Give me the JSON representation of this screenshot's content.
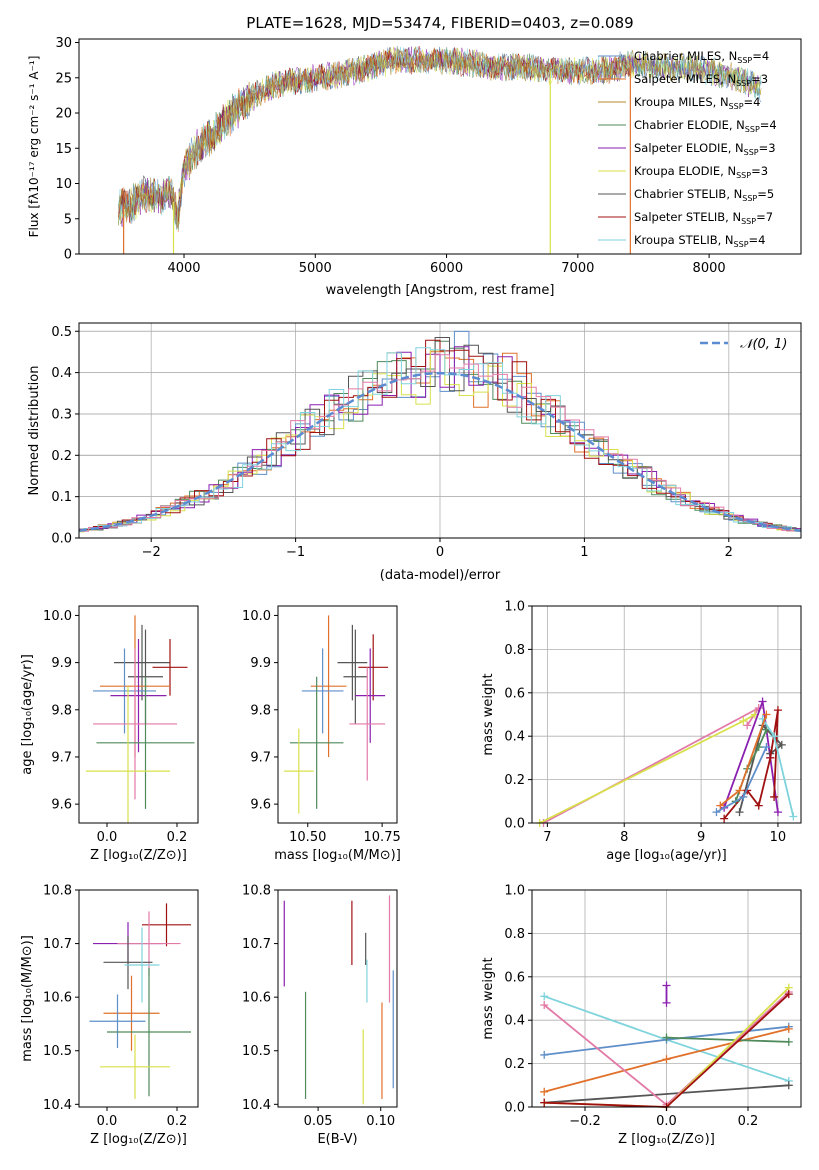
{
  "figure_title": "PLATE=1628, MJD=53474, FIBERID=0403, z=0.089",
  "colors": {
    "chabrier_miles": "#5f8fc9",
    "salpeter_miles": "#e0702a",
    "kroupa_miles": "#b58a2a",
    "chabrier_elodie": "#4f8a5b",
    "salpeter_elodie": "#8a1fb0",
    "kroupa_elodie": "#d8e04a",
    "chabrier_stelib": "#555555",
    "salpeter_stelib": "#a01010",
    "kroupa_stelib": "#7fd3dc",
    "pink": "#e27aa8",
    "red_extra": "#d04a4a",
    "gaussian": "#5b8bd0"
  },
  "chart_data": [
    {
      "id": "spectrum",
      "type": "line",
      "title": "PLATE=1628, MJD=53474, FIBERID=0403, z=0.089",
      "xlabel": "wavelength [Angstrom, rest frame]",
      "ylabel": "Flux [fλ10⁻¹⁷ erg cm⁻² s⁻¹ A⁻¹]",
      "xlim": [
        3200,
        8700
      ],
      "ylim": [
        0,
        30.5
      ],
      "xticks": [
        "4000",
        "5000",
        "6000",
        "7000",
        "8000"
      ],
      "yticks": [
        "0",
        "5",
        "10",
        "15",
        "20",
        "25",
        "30"
      ],
      "legend_position": "top-right",
      "series": [
        {
          "name": "Chabrier MILES, N_SSP=4",
          "label": "Chabrier MILES, N",
          "sub": "SSP",
          "tail": "=4",
          "color": "#5f8fc9"
        },
        {
          "name": "Salpeter MILES, N_SSP=3",
          "label": "Salpeter MILES, N",
          "sub": "SSP",
          "tail": "=3",
          "color": "#e0702a"
        },
        {
          "name": "Kroupa MILES, N_SSP=4",
          "label": "Kroupa MILES, N",
          "sub": "SSP",
          "tail": "=4",
          "color": "#b58a2a"
        },
        {
          "name": "Chabrier ELODIE, N_SSP=4",
          "label": "Chabrier ELODIE, N",
          "sub": "SSP",
          "tail": "=4",
          "color": "#4f8a5b"
        },
        {
          "name": "Salpeter ELODIE, N_SSP=3",
          "label": "Salpeter ELODIE, N",
          "sub": "SSP",
          "tail": "=3",
          "color": "#8a1fb0"
        },
        {
          "name": "Kroupa ELODIE, N_SSP=3",
          "label": "Kroupa ELODIE, N",
          "sub": "SSP",
          "tail": "=3",
          "color": "#d8e04a"
        },
        {
          "name": "Chabrier STELIB, N_SSP=5",
          "label": "Chabrier STELIB, N",
          "sub": "SSP",
          "tail": "=5",
          "color": "#555555"
        },
        {
          "name": "Salpeter STELIB, N_SSP=7",
          "label": "Salpeter STELIB, N",
          "sub": "SSP",
          "tail": "=7",
          "color": "#a01010"
        },
        {
          "name": "Kroupa STELIB, N_SSP=4",
          "label": "Kroupa STELIB, N",
          "sub": "SSP",
          "tail": "=4",
          "color": "#7fd3dc"
        }
      ],
      "envelope": {
        "x": [
          3500,
          3600,
          3700,
          3800,
          3900,
          3950,
          4000,
          4100,
          4200,
          4300,
          4400,
          4500,
          4600,
          4700,
          4800,
          4900,
          5000,
          5200,
          5400,
          5600,
          5800,
          6000,
          6200,
          6400,
          6600,
          6800,
          7000,
          7200,
          7400,
          7600,
          7800,
          8000,
          8200,
          8400
        ],
        "y": [
          6.5,
          7.0,
          8.5,
          8.0,
          9.0,
          5.0,
          12.0,
          15.0,
          16.5,
          18.5,
          20.5,
          22.0,
          23.0,
          24.0,
          24.5,
          24.5,
          25.0,
          25.5,
          26.5,
          27.5,
          27.5,
          27.5,
          27.0,
          26.5,
          26.5,
          26.0,
          26.0,
          26.0,
          27.0,
          26.5,
          26.5,
          26.0,
          25.0,
          23.5
        ]
      },
      "dropouts": [
        {
          "x": 3540,
          "color": "#e0702a",
          "y": 0
        },
        {
          "x": 3920,
          "color": "#d8e04a",
          "y": 0
        },
        {
          "x": 6790,
          "color": "#d8e04a",
          "y": 0
        },
        {
          "x": 7400,
          "color": "#e0702a",
          "y": 0
        }
      ]
    },
    {
      "id": "residuals",
      "type": "bar",
      "xlabel": "(data-model)/error",
      "ylabel": "Normed distribution",
      "xlim": [
        -2.5,
        2.5
      ],
      "ylim": [
        0,
        0.52
      ],
      "xticks": [
        "−2",
        "−1",
        "0",
        "1",
        "2"
      ],
      "xtick_values": [
        -2,
        -1,
        0,
        1,
        2
      ],
      "yticks": [
        "0.0",
        "0.1",
        "0.2",
        "0.3",
        "0.4",
        "0.5"
      ],
      "legend": "𝒩(0, 1)",
      "legend_position": "top-right",
      "bin_width": 0.1
    },
    {
      "id": "age-vs-Z",
      "type": "scatter",
      "xlabel": "Z [log₁₀(Z/Z⊙)]",
      "ylabel": "age  [log₁₀(age/yr)]",
      "xlim": [
        -0.08,
        0.26
      ],
      "ylim": [
        9.56,
        10.02
      ],
      "xticks": [
        "0.0",
        "0.2"
      ],
      "xtick_values": [
        0.0,
        0.2
      ],
      "yticks": [
        "9.6",
        "9.7",
        "9.8",
        "9.9",
        "10.0"
      ],
      "ytick_values": [
        9.6,
        9.7,
        9.8,
        9.9,
        10.0
      ],
      "points": [
        {
          "x": 0.1,
          "y": 9.9,
          "xerr": 0.08,
          "yerr": 0.08,
          "color": "#555555"
        },
        {
          "x": 0.18,
          "y": 9.89,
          "xerr": 0.05,
          "yerr": 0.06,
          "color": "#a01010"
        },
        {
          "x": 0.11,
          "y": 9.87,
          "xerr": 0.05,
          "yerr": 0.1,
          "color": "#555555"
        },
        {
          "x": 0.08,
          "y": 9.85,
          "xerr": 0.1,
          "yerr": 0.15,
          "color": "#e0702a"
        },
        {
          "x": 0.05,
          "y": 9.84,
          "xerr": 0.09,
          "yerr": 0.09,
          "color": "#5f8fc9"
        },
        {
          "x": 0.09,
          "y": 9.83,
          "xerr": 0.08,
          "yerr": 0.12,
          "color": "#8a1fb0"
        },
        {
          "x": 0.08,
          "y": 9.77,
          "xerr": 0.12,
          "yerr": 0.16,
          "color": "#e27aa8"
        },
        {
          "x": 0.11,
          "y": 9.73,
          "xerr": 0.14,
          "yerr": 0.14,
          "color": "#4f8a5b"
        },
        {
          "x": 0.06,
          "y": 9.67,
          "xerr": 0.12,
          "yerr": 0.18,
          "color": "#d8e04a"
        }
      ]
    },
    {
      "id": "age-vs-mass",
      "type": "scatter",
      "xlabel": "mass [log₁₀(M/M⊙)]",
      "ylabel": "",
      "xlim": [
        10.4,
        10.8
      ],
      "ylim": [
        9.56,
        10.02
      ],
      "xticks": [
        "10.50",
        "10.75"
      ],
      "xtick_values": [
        10.5,
        10.75
      ],
      "yticks": [
        "9.6",
        "9.7",
        "9.8",
        "9.9",
        "10.0"
      ],
      "ytick_values": [
        9.6,
        9.7,
        9.8,
        9.9,
        10.0
      ],
      "points": [
        {
          "x": 10.65,
          "y": 9.9,
          "xerr": 0.05,
          "yerr": 0.08,
          "color": "#555555"
        },
        {
          "x": 10.72,
          "y": 9.89,
          "xerr": 0.05,
          "yerr": 0.07,
          "color": "#a01010"
        },
        {
          "x": 10.66,
          "y": 9.87,
          "xerr": 0.04,
          "yerr": 0.1,
          "color": "#555555"
        },
        {
          "x": 10.57,
          "y": 9.85,
          "xerr": 0.06,
          "yerr": 0.15,
          "color": "#e0702a"
        },
        {
          "x": 10.55,
          "y": 9.84,
          "xerr": 0.07,
          "yerr": 0.09,
          "color": "#5f8fc9"
        },
        {
          "x": 10.71,
          "y": 9.83,
          "xerr": 0.05,
          "yerr": 0.1,
          "color": "#8a1fb0"
        },
        {
          "x": 10.7,
          "y": 9.77,
          "xerr": 0.06,
          "yerr": 0.12,
          "color": "#e27aa8"
        },
        {
          "x": 10.53,
          "y": 9.73,
          "xerr": 0.09,
          "yerr": 0.14,
          "color": "#4f8a5b"
        },
        {
          "x": 10.47,
          "y": 9.67,
          "xerr": 0.05,
          "yerr": 0.09,
          "color": "#d8e04a"
        }
      ]
    },
    {
      "id": "massweight-vs-age",
      "type": "line",
      "xlabel": "age  [log₁₀(age/yr)]",
      "ylabel": "mass weight",
      "xlim": [
        6.8,
        10.3
      ],
      "ylim": [
        0,
        1.0
      ],
      "xticks": [
        "7",
        "8",
        "9",
        "10"
      ],
      "xtick_values": [
        7,
        8,
        9,
        10
      ],
      "yticks": [
        "0.0",
        "0.2",
        "0.4",
        "0.6",
        "0.8",
        "1.0"
      ],
      "ytick_values": [
        0,
        0.2,
        0.4,
        0.6,
        0.8,
        1.0
      ],
      "series": [
        {
          "color": "#e27aa8",
          "x": [
            6.95,
            9.75,
            9.6
          ],
          "y": [
            0.0,
            0.53,
            0.45
          ]
        },
        {
          "color": "#d8e04a",
          "x": [
            6.9,
            9.55,
            9.7
          ],
          "y": [
            0.0,
            0.47,
            0.5
          ]
        },
        {
          "color": "#8a1fb0",
          "x": [
            9.3,
            9.8,
            9.9,
            10.0
          ],
          "y": [
            0.07,
            0.56,
            0.3,
            0.05
          ]
        },
        {
          "color": "#555555",
          "x": [
            9.5,
            9.8,
            10.05,
            9.9
          ],
          "y": [
            0.05,
            0.45,
            0.36,
            0.32
          ]
        },
        {
          "color": "#a01010",
          "x": [
            9.3,
            9.6,
            9.75,
            9.9,
            10.0,
            9.95
          ],
          "y": [
            0.02,
            0.15,
            0.08,
            0.3,
            0.52,
            0.12
          ]
        },
        {
          "color": "#4f8a5b",
          "x": [
            9.45,
            9.6,
            9.75,
            9.85
          ],
          "y": [
            0.1,
            0.25,
            0.35,
            0.43
          ]
        },
        {
          "color": "#7fd3dc",
          "x": [
            9.8,
            9.95,
            10.2
          ],
          "y": [
            0.48,
            0.4,
            0.03
          ]
        },
        {
          "color": "#e0702a",
          "x": [
            9.25,
            9.5,
            9.85
          ],
          "y": [
            0.08,
            0.15,
            0.5
          ]
        },
        {
          "color": "#5f8fc9",
          "x": [
            9.2,
            9.55,
            9.85
          ],
          "y": [
            0.05,
            0.12,
            0.35
          ]
        }
      ]
    },
    {
      "id": "mass-vs-Z",
      "type": "scatter",
      "xlabel": "Z [log₁₀(Z/Z⊙)]",
      "ylabel": "mass [log₁₀(M/M⊙)]",
      "xlim": [
        -0.08,
        0.26
      ],
      "ylim": [
        10.395,
        10.8
      ],
      "xticks": [
        "0.0",
        "0.2"
      ],
      "xtick_values": [
        0.0,
        0.2
      ],
      "yticks": [
        "10.4",
        "10.5",
        "10.6",
        "10.7",
        "10.8"
      ],
      "ytick_values": [
        10.4,
        10.5,
        10.6,
        10.7,
        10.8
      ],
      "points": [
        {
          "x": 0.17,
          "y": 10.735,
          "xerr": 0.07,
          "yerr": 0.04,
          "color": "#a01010"
        },
        {
          "x": 0.06,
          "y": 10.7,
          "xerr": 0.1,
          "yerr": 0.04,
          "color": "#8a1fb0"
        },
        {
          "x": 0.12,
          "y": 10.7,
          "xerr": 0.09,
          "yerr": 0.06,
          "color": "#e27aa8"
        },
        {
          "x": 0.06,
          "y": 10.665,
          "xerr": 0.07,
          "yerr": 0.05,
          "color": "#555555"
        },
        {
          "x": 0.1,
          "y": 10.66,
          "xerr": 0.05,
          "yerr": 0.07,
          "color": "#7fd3dc"
        },
        {
          "x": 0.07,
          "y": 10.57,
          "xerr": 0.08,
          "yerr": 0.07,
          "color": "#e0702a"
        },
        {
          "x": 0.03,
          "y": 10.555,
          "xerr": 0.08,
          "yerr": 0.05,
          "color": "#5f8fc9"
        },
        {
          "x": 0.12,
          "y": 10.535,
          "xerr": 0.12,
          "yerr": 0.12,
          "color": "#4f8a5b"
        },
        {
          "x": 0.08,
          "y": 10.47,
          "xerr": 0.1,
          "yerr": 0.06,
          "color": "#d8e04a"
        }
      ]
    },
    {
      "id": "mass-vs-EBV",
      "type": "scatter",
      "xlabel": "E(B-V)",
      "ylabel": "",
      "xlim": [
        0.018,
        0.113
      ],
      "ylim": [
        10.395,
        10.8
      ],
      "xticks": [
        "0.05",
        "0.10"
      ],
      "xtick_values": [
        0.05,
        0.1
      ],
      "yticks": [
        "10.4",
        "10.5",
        "10.6",
        "10.7",
        "10.8"
      ],
      "ytick_values": [
        10.4,
        10.5,
        10.6,
        10.7,
        10.8
      ],
      "points": [
        {
          "x": 0.023,
          "y": 10.7,
          "xerr": 0,
          "yerr": 0.08,
          "color": "#8a1fb0"
        },
        {
          "x": 0.04,
          "y": 10.51,
          "xerr": 0,
          "yerr": 0.1,
          "color": "#4f8a5b"
        },
        {
          "x": 0.077,
          "y": 10.72,
          "xerr": 0,
          "yerr": 0.06,
          "color": "#a01010"
        },
        {
          "x": 0.086,
          "y": 10.47,
          "xerr": 0,
          "yerr": 0.07,
          "color": "#d8e04a"
        },
        {
          "x": 0.088,
          "y": 10.69,
          "xerr": 0,
          "yerr": 0.03,
          "color": "#555555"
        },
        {
          "x": 0.089,
          "y": 10.63,
          "xerr": 0,
          "yerr": 0.04,
          "color": "#7fd3dc"
        },
        {
          "x": 0.101,
          "y": 10.5,
          "xerr": 0,
          "yerr": 0.09,
          "color": "#e0702a"
        },
        {
          "x": 0.107,
          "y": 10.69,
          "xerr": 0,
          "yerr": 0.1,
          "color": "#e27aa8"
        },
        {
          "x": 0.11,
          "y": 10.54,
          "xerr": 0,
          "yerr": 0.11,
          "color": "#5f8fc9"
        }
      ]
    },
    {
      "id": "massweight-vs-Z",
      "type": "line",
      "xlabel": "Z [log₁₀(Z/Z⊙)]",
      "ylabel": "mass weight",
      "xlim": [
        -0.33,
        0.33
      ],
      "ylim": [
        0,
        1.0
      ],
      "xticks": [
        "−0.2",
        "0.0",
        "0.2"
      ],
      "xtick_values": [
        -0.2,
        0.0,
        0.2
      ],
      "yticks": [
        "0.0",
        "0.2",
        "0.4",
        "0.6",
        "0.8",
        "1.0"
      ],
      "ytick_values": [
        0,
        0.2,
        0.4,
        0.6,
        0.8,
        1.0
      ],
      "series": [
        {
          "color": "#7fd3dc",
          "x": [
            -0.3,
            0.0,
            0.3
          ],
          "y": [
            0.51,
            0.31,
            0.12
          ]
        },
        {
          "color": "#5f8fc9",
          "x": [
            -0.3,
            0.0,
            0.3
          ],
          "y": [
            0.24,
            0.31,
            0.37
          ]
        },
        {
          "color": "#e0702a",
          "x": [
            -0.3,
            0.0,
            0.3
          ],
          "y": [
            0.07,
            0.22,
            0.36
          ]
        },
        {
          "color": "#4f8a5b",
          "x": [
            0.0,
            0.3
          ],
          "y": [
            0.32,
            0.3
          ]
        },
        {
          "color": "#555555",
          "x": [
            -0.3,
            0.3
          ],
          "y": [
            0.02,
            0.1
          ]
        },
        {
          "color": "#e27aa8",
          "x": [
            -0.3,
            0.0,
            0.3
          ],
          "y": [
            0.47,
            0.01,
            0.53
          ]
        },
        {
          "color": "#d8e04a",
          "x": [
            -0.3,
            0.0,
            0.3
          ],
          "y": [
            0.02,
            0.0,
            0.55
          ]
        },
        {
          "color": "#a01010",
          "x": [
            -0.3,
            0.0,
            0.3
          ],
          "y": [
            0.02,
            0.0,
            0.52
          ]
        },
        {
          "color": "#8a1fb0",
          "x": [
            0.0,
            0.0
          ],
          "y": [
            0.48,
            0.56
          ]
        }
      ]
    }
  ]
}
